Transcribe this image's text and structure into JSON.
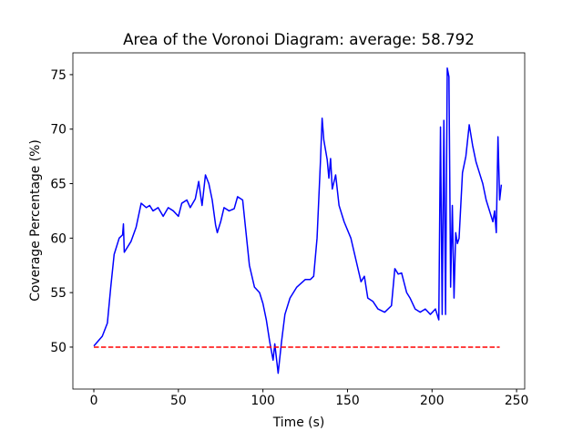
{
  "chart_data": {
    "type": "line",
    "title": "Area of the Voronoi Diagram: average: 58.792",
    "xlabel": "Time (s)",
    "ylabel": "Coverage Percentage (%)",
    "xlim": [
      -12.4,
      254.8
    ],
    "ylim": [
      46.15,
      77.0
    ],
    "xticks": [
      0,
      50,
      100,
      150,
      200,
      250
    ],
    "yticks": [
      50,
      55,
      60,
      65,
      70,
      75
    ],
    "series": [
      {
        "color": "#0000ff",
        "dashed": false,
        "x": [
          0,
          5,
          8,
          10,
          12,
          15,
          17,
          17.5,
          18,
          22,
          25,
          28,
          31,
          33,
          35,
          38,
          41,
          44,
          47,
          50,
          52,
          55,
          57,
          60,
          62,
          64,
          66,
          68,
          70,
          72,
          73,
          75,
          77,
          80,
          83,
          85,
          88,
          90,
          92,
          95,
          98,
          100,
          102,
          104,
          106,
          107,
          109,
          111,
          113,
          116,
          120,
          125,
          128,
          130,
          132,
          134,
          135,
          136,
          138,
          139,
          140,
          141,
          143,
          145,
          148,
          152,
          155,
          158,
          160,
          162,
          165,
          168,
          172,
          176,
          178,
          180,
          182,
          185,
          187,
          190,
          193,
          196,
          199,
          202,
          204,
          205,
          206,
          207,
          208,
          209,
          210,
          211,
          212,
          213,
          214,
          215,
          216,
          218,
          220,
          222,
          224,
          226,
          228,
          230,
          232,
          234,
          236,
          237,
          238,
          239,
          240,
          241
        ],
        "values": [
          50.1,
          51,
          52.2,
          55.5,
          58.5,
          60,
          60.3,
          61.3,
          58.7,
          59.7,
          61,
          63.2,
          62.8,
          63,
          62.5,
          62.8,
          62,
          62.8,
          62.5,
          62,
          63.2,
          63.5,
          62.8,
          63.6,
          65.2,
          63,
          65.8,
          65,
          63.5,
          61.2,
          60.5,
          61.5,
          62.8,
          62.5,
          62.7,
          63.8,
          63.5,
          60.5,
          57.5,
          55.5,
          55,
          54,
          52.5,
          50.5,
          48.8,
          50.3,
          47.6,
          50.5,
          53,
          54.5,
          55.5,
          56.2,
          56.2,
          56.5,
          60,
          67,
          71,
          69,
          67.2,
          65.5,
          67.3,
          64.5,
          65.8,
          63,
          61.5,
          60,
          58,
          56,
          56.5,
          54.5,
          54.2,
          53.5,
          53.2,
          53.8,
          57.2,
          56.7,
          56.8,
          55,
          54.5,
          53.5,
          53.2,
          53.5,
          53,
          53.5,
          52.5,
          70.2,
          53,
          70.8,
          53,
          75.6,
          74.8,
          55.5,
          63,
          54.5,
          60.5,
          59.5,
          60,
          66,
          67.5,
          70.4,
          68.5,
          67,
          66,
          65,
          63.5,
          62.5,
          61.5,
          62.5,
          60.5,
          69.3,
          63.5,
          64.9
        ]
      },
      {
        "color": "#ff0000",
        "dashed": true,
        "x": [
          0,
          240
        ],
        "values": [
          50,
          50
        ]
      }
    ]
  }
}
